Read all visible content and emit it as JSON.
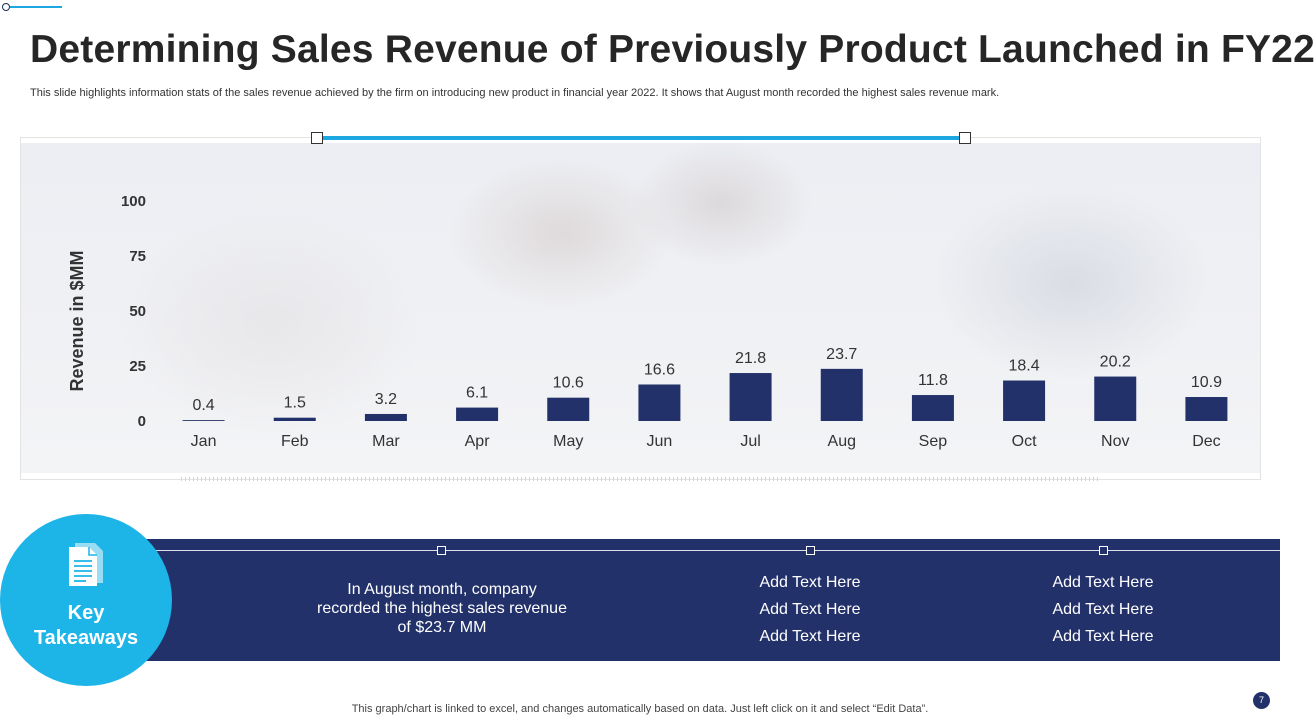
{
  "header": {
    "title": "Determining Sales Revenue of Previously Product Launched in FY22",
    "subtitle": "This slide highlights information stats of the sales revenue achieved by the firm on introducing new product in financial year 2022. It shows that August month recorded the highest sales revenue mark."
  },
  "chart_data": {
    "type": "bar",
    "title": "",
    "xlabel": "",
    "ylabel": "Revenue in $MM",
    "ylim": [
      0,
      100
    ],
    "yticks": [
      0,
      25,
      50,
      75,
      100
    ],
    "categories": [
      "Jan",
      "Feb",
      "Mar",
      "Apr",
      "May",
      "Jun",
      "Jul",
      "Aug",
      "Sep",
      "Oct",
      "Nov",
      "Dec"
    ],
    "values": [
      0.4,
      1.5,
      3.2,
      6.1,
      10.6,
      16.6,
      21.8,
      23.7,
      11.8,
      18.4,
      20.2,
      10.9
    ],
    "bar_color": "#23316a",
    "grid": false,
    "legend": "none"
  },
  "takeaways": {
    "circle_label_line1": "Key",
    "circle_label_line2": "Takeaways",
    "icon": "document-icon",
    "main_line1": "In August month, company",
    "main_line2": "recorded the highest sales revenue",
    "main_line3": "of $23.7 MM",
    "col1": [
      "Add Text Here",
      "Add Text Here",
      "Add Text Here"
    ],
    "col2": [
      "Add Text Here",
      "Add Text Here",
      "Add Text Here"
    ]
  },
  "footer": {
    "note": "This graph/chart is linked to excel,  and changes automatically based on data. Just left click on it and select “Edit Data”.",
    "page_number": "7"
  },
  "colors": {
    "accent": "#1db4e8",
    "navy": "#23316a",
    "text": "#262626"
  }
}
